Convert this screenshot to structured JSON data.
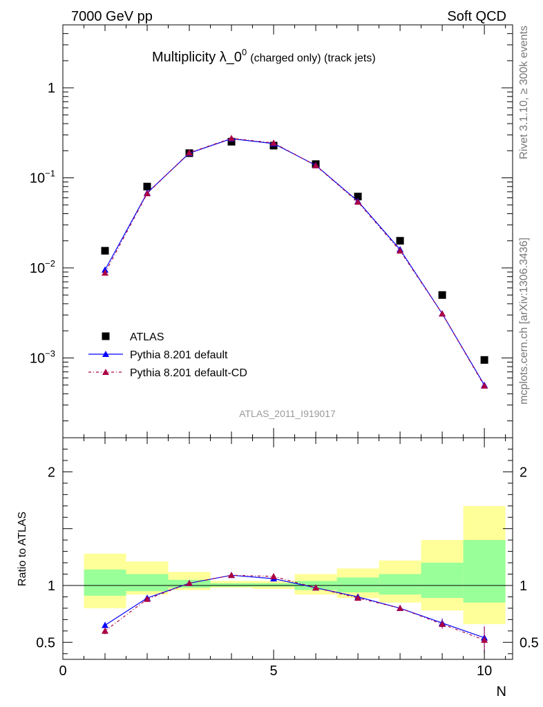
{
  "header": {
    "left": "7000 GeV pp",
    "right": "Soft QCD"
  },
  "side_labels": {
    "rivet": "Rivet 3.1.10, ≥ 300k events",
    "mcplots": "mcplots.cern.ch [arXiv:1306.3436]"
  },
  "chart_data": {
    "type": "scatter",
    "title": "Multiplicity λ_0",
    "title_sup": "0",
    "title_suffix": "(charged only) (track jets)",
    "watermark": "ATLAS_2011_I919017",
    "xlabel": "N",
    "ylabel_ratio": "Ratio to ATLAS",
    "xlim": [
      0,
      10.67
    ],
    "ylim_main": [
      0.00013,
      5
    ],
    "log_y_main": true,
    "ylim_ratio": [
      0.35,
      2.3
    ],
    "x_ticks": [
      "0",
      "5",
      "10"
    ],
    "y_ticks_main": [
      {
        "base": "10",
        "exp": "−3",
        "value": 0.001
      },
      {
        "base": "10",
        "exp": "−2",
        "value": 0.01
      },
      {
        "base": "10",
        "exp": "−1",
        "value": 0.1
      },
      {
        "base": "1",
        "exp": "",
        "value": 1
      }
    ],
    "y_ticks_ratio": [
      "0.5",
      "1",
      "2"
    ],
    "legend": {
      "position": "bottom-left",
      "entries": [
        "ATLAS",
        "Pythia 8.201 default",
        "Pythia 8.201 default-CD"
      ]
    },
    "x": [
      1,
      2,
      3,
      4,
      5,
      6,
      7,
      8,
      9,
      10
    ],
    "series": [
      {
        "name": "ATLAS",
        "color": "#000000",
        "marker": "square",
        "values": [
          0.0155,
          0.08,
          0.188,
          0.252,
          0.228,
          0.142,
          0.062,
          0.02,
          0.005,
          0.00095
        ]
      },
      {
        "name": "Pythia 8.201 default",
        "color": "#0000ff",
        "marker": "triangle",
        "line": "solid",
        "values": [
          0.0095,
          0.068,
          0.188,
          0.272,
          0.24,
          0.138,
          0.055,
          0.016,
          0.0031,
          0.0005
        ],
        "ratio": [
          0.65,
          0.89,
          1.02,
          1.09,
          1.06,
          0.98,
          0.9,
          0.8,
          0.67,
          0.54
        ],
        "ratio_err": [
          0.03,
          0.01,
          0.01,
          0.01,
          0.01,
          0.01,
          0.01,
          0.02,
          0.04,
          0.1
        ]
      },
      {
        "name": "Pythia 8.201 default-CD",
        "color": "#aa0044",
        "marker": "triangle",
        "line": "dashdot",
        "values": [
          0.0088,
          0.067,
          0.19,
          0.275,
          0.244,
          0.137,
          0.054,
          0.0155,
          0.0031,
          0.00049
        ],
        "ratio": [
          0.6,
          0.88,
          1.02,
          1.09,
          1.08,
          0.98,
          0.89,
          0.8,
          0.66,
          0.52
        ],
        "ratio_err": [
          0.03,
          0.01,
          0.01,
          0.01,
          0.01,
          0.01,
          0.01,
          0.02,
          0.04,
          0.12
        ]
      }
    ],
    "ratio_bands": {
      "bin_edges": [
        0.5,
        1.5,
        2.5,
        3.5,
        4.5,
        5.5,
        6.5,
        7.5,
        8.5,
        9.5,
        10.5
      ],
      "green_color": "#99ff99",
      "yellow_color": "#ffff99",
      "green_low": [
        0.91,
        0.95,
        0.98,
        0.99,
        0.99,
        0.96,
        0.94,
        0.92,
        0.89,
        0.85
      ],
      "green_high": [
        1.14,
        1.1,
        1.05,
        1.02,
        1.02,
        1.04,
        1.07,
        1.1,
        1.2,
        1.4
      ],
      "yellow_low": [
        0.8,
        0.92,
        0.96,
        0.98,
        0.97,
        0.92,
        0.89,
        0.85,
        0.78,
        0.66
      ],
      "yellow_high": [
        1.28,
        1.21,
        1.12,
        1.04,
        1.04,
        1.1,
        1.15,
        1.22,
        1.4,
        1.7
      ]
    }
  }
}
